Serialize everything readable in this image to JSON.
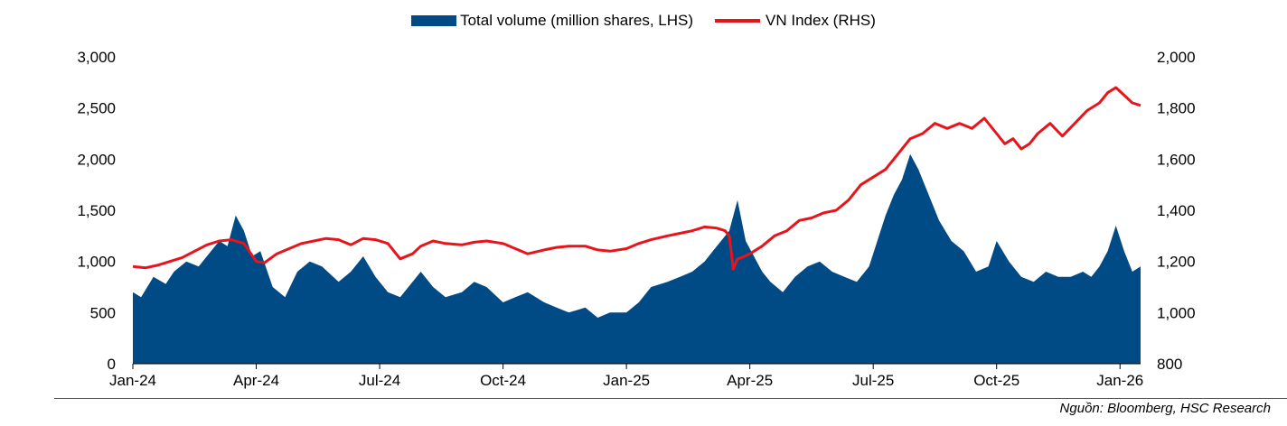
{
  "chart_data": {
    "type": "area",
    "legend": {
      "volume_label": "Total volume (million shares, LHS)",
      "index_label": "VN Index (RHS)"
    },
    "left_axis": {
      "min": 0,
      "max": 3000,
      "ticks": [
        "0",
        "500",
        "1,000",
        "1,500",
        "2,000",
        "2,500",
        "3,000"
      ],
      "tick_values": [
        0,
        500,
        1000,
        1500,
        2000,
        2500,
        3000
      ]
    },
    "right_axis": {
      "min": 800,
      "max": 2000,
      "ticks": [
        "800",
        "1,000",
        "1,200",
        "1,400",
        "1,600",
        "1,800",
        "2,000"
      ],
      "tick_values": [
        800,
        1000,
        1200,
        1400,
        1600,
        1800,
        2000
      ]
    },
    "x_labels": [
      "Jan-24",
      "Apr-24",
      "Jul-24",
      "Oct-24",
      "Jan-25",
      "Apr-25",
      "Jul-25",
      "Oct-25",
      "Jan-26"
    ],
    "x_label_months": [
      0,
      3,
      6,
      9,
      12,
      15,
      18,
      21,
      24
    ],
    "x_range_months": [
      0,
      24.5
    ],
    "colors": {
      "volume": "#004A86",
      "index": "#E8141C"
    },
    "series": [
      {
        "name": "Total volume (million shares, LHS)",
        "x": [
          0,
          0.2,
          0.5,
          0.8,
          1.0,
          1.3,
          1.6,
          1.9,
          2.1,
          2.3,
          2.5,
          2.7,
          2.9,
          3.1,
          3.4,
          3.7,
          4.0,
          4.3,
          4.6,
          5.0,
          5.3,
          5.6,
          5.9,
          6.2,
          6.5,
          6.8,
          7.0,
          7.3,
          7.6,
          8.0,
          8.3,
          8.6,
          9.0,
          9.3,
          9.6,
          10.0,
          10.3,
          10.6,
          11.0,
          11.3,
          11.6,
          12.0,
          12.3,
          12.6,
          13.0,
          13.3,
          13.6,
          13.9,
          14.1,
          14.3,
          14.5,
          14.7,
          14.9,
          15.1,
          15.3,
          15.5,
          15.8,
          16.1,
          16.4,
          16.7,
          17.0,
          17.3,
          17.6,
          17.9,
          18.1,
          18.3,
          18.5,
          18.7,
          18.9,
          19.1,
          19.3,
          19.6,
          19.9,
          20.2,
          20.5,
          20.8,
          21.0,
          21.3,
          21.6,
          21.9,
          22.2,
          22.5,
          22.8,
          23.1,
          23.3,
          23.5,
          23.7,
          23.9,
          24.1,
          24.3,
          24.5
        ],
        "values": [
          700,
          650,
          850,
          780,
          900,
          1000,
          950,
          1100,
          1200,
          1150,
          1450,
          1300,
          1050,
          1100,
          750,
          650,
          900,
          1000,
          950,
          800,
          900,
          1050,
          850,
          700,
          650,
          800,
          900,
          750,
          650,
          700,
          800,
          750,
          600,
          650,
          700,
          600,
          550,
          500,
          550,
          450,
          500,
          500,
          600,
          750,
          800,
          850,
          900,
          1000,
          1100,
          1200,
          1300,
          1600,
          1200,
          1050,
          900,
          800,
          700,
          850,
          950,
          1000,
          900,
          850,
          800,
          950,
          1200,
          1450,
          1650,
          1800,
          2050,
          1900,
          1700,
          1400,
          1200,
          1100,
          900,
          950,
          1200,
          1000,
          850,
          800,
          900,
          850,
          850,
          900,
          850,
          950,
          1100,
          1350,
          1100,
          900,
          950
        ]
      },
      {
        "name": "VN Index (RHS)",
        "x": [
          0,
          0.3,
          0.6,
          0.9,
          1.2,
          1.5,
          1.8,
          2.1,
          2.4,
          2.7,
          3.0,
          3.2,
          3.5,
          3.8,
          4.1,
          4.4,
          4.7,
          5.0,
          5.3,
          5.6,
          5.9,
          6.2,
          6.5,
          6.8,
          7.0,
          7.3,
          7.6,
          8.0,
          8.3,
          8.6,
          9.0,
          9.3,
          9.6,
          10.0,
          10.3,
          10.6,
          11.0,
          11.3,
          11.6,
          12.0,
          12.3,
          12.6,
          13.0,
          13.3,
          13.6,
          13.9,
          14.2,
          14.4,
          14.5,
          14.6,
          14.7,
          14.8,
          15.0,
          15.3,
          15.6,
          15.9,
          16.2,
          16.5,
          16.8,
          17.1,
          17.4,
          17.7,
          18.0,
          18.3,
          18.6,
          18.9,
          19.2,
          19.5,
          19.8,
          20.1,
          20.4,
          20.7,
          21.0,
          21.2,
          21.4,
          21.6,
          21.8,
          22.0,
          22.3,
          22.6,
          22.9,
          23.2,
          23.5,
          23.7,
          23.9,
          24.1,
          24.3,
          24.5
        ],
        "values": [
          1180,
          1175,
          1185,
          1200,
          1215,
          1240,
          1265,
          1280,
          1285,
          1270,
          1200,
          1195,
          1230,
          1250,
          1270,
          1280,
          1290,
          1285,
          1265,
          1290,
          1285,
          1270,
          1210,
          1230,
          1260,
          1280,
          1270,
          1265,
          1275,
          1280,
          1270,
          1250,
          1230,
          1245,
          1255,
          1260,
          1260,
          1245,
          1240,
          1250,
          1270,
          1285,
          1300,
          1310,
          1320,
          1335,
          1330,
          1320,
          1300,
          1170,
          1210,
          1215,
          1230,
          1260,
          1300,
          1320,
          1360,
          1370,
          1390,
          1400,
          1440,
          1500,
          1530,
          1560,
          1620,
          1680,
          1700,
          1740,
          1720,
          1740,
          1720,
          1760,
          1700,
          1660,
          1680,
          1640,
          1660,
          1700,
          1740,
          1690,
          1740,
          1790,
          1820,
          1860,
          1880,
          1850,
          1820,
          1810
        ]
      }
    ]
  },
  "source_text": "Nguồn: Bloomberg, HSC Research"
}
